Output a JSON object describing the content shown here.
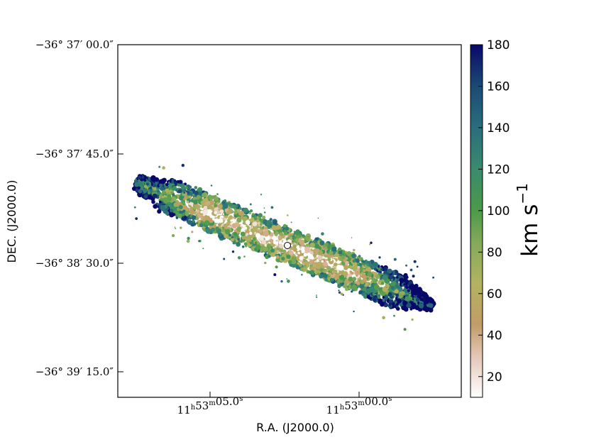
{
  "chart_data": {
    "type": "heatmap",
    "title": "",
    "xlabel": "R.A. (J2000.0)",
    "ylabel": "DEC. (J2000.0)",
    "x_ticks": [
      {
        "h": "11",
        "m": "53",
        "s": "05.0",
        "label": "11h53m05.0s"
      },
      {
        "h": "11",
        "m": "53",
        "s": "00.0",
        "label": "11h53m00.0s"
      }
    ],
    "y_ticks": [
      "−36° 37′ 00.0″",
      "−36° 37′ 45.0″",
      "−36° 38′ 30.0″",
      "−36° 39′ 15.0″"
    ],
    "colorbar": {
      "label_main": "km s",
      "label_sup": "−1",
      "range": [
        10,
        180
      ],
      "ticks": [
        "20",
        "40",
        "60",
        "80",
        "100",
        "120",
        "140",
        "160",
        "180"
      ],
      "tick_values": [
        20,
        40,
        60,
        80,
        100,
        120,
        140,
        160,
        180
      ],
      "colormap_stops": [
        {
          "v": 10,
          "c": "#ffffff"
        },
        {
          "v": 30,
          "c": "#e3c6b6"
        },
        {
          "v": 45,
          "c": "#c19c68"
        },
        {
          "v": 65,
          "c": "#b3b35f"
        },
        {
          "v": 85,
          "c": "#82a95a"
        },
        {
          "v": 100,
          "c": "#4c9a48"
        },
        {
          "v": 120,
          "c": "#3a8a6e"
        },
        {
          "v": 140,
          "c": "#2a6e7c"
        },
        {
          "v": 160,
          "c": "#1c4a74"
        },
        {
          "v": 180,
          "c": "#08086a"
        }
      ]
    },
    "description_values": {
      "center_velocity_low": 20,
      "edge_velocity_high": 180
    },
    "marker": "white-circle-center"
  }
}
